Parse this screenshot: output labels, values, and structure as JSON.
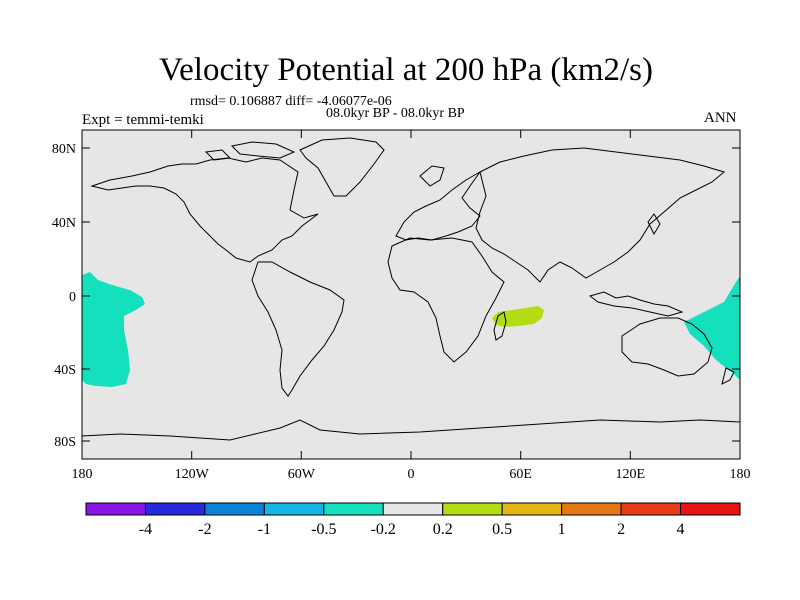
{
  "title": "Velocity Potential at 200 hPa (km2/s)",
  "stats": "rmsd= 0.106887 diff= -4.06077e-06",
  "period": "08.0kyr BP - 08.0kyr BP",
  "experiment": "Expt = temmi-temki",
  "season": "ANN",
  "lat_ticks": [
    "80N",
    "40N",
    "0",
    "40S",
    "80S"
  ],
  "lon_ticks": [
    "180",
    "120W",
    "60W",
    "0",
    "60E",
    "120E",
    "180"
  ],
  "colorbar": {
    "colors": [
      "#8a14e6",
      "#2828dc",
      "#0a82dc",
      "#14b4e6",
      "#14e0be",
      "#e6e6e6",
      "#b4dc14",
      "#e6b414",
      "#e67814",
      "#e63c14",
      "#e61414"
    ],
    "labels": [
      "-4",
      "-2",
      "-1",
      "-0.5",
      "-0.2",
      "0.2",
      "0.5",
      "1",
      "2",
      "4"
    ]
  },
  "colors": {
    "map_background": "#e6e6e6",
    "negative_anomaly": "#14e0be",
    "positive_anomaly": "#b4dc14"
  }
}
